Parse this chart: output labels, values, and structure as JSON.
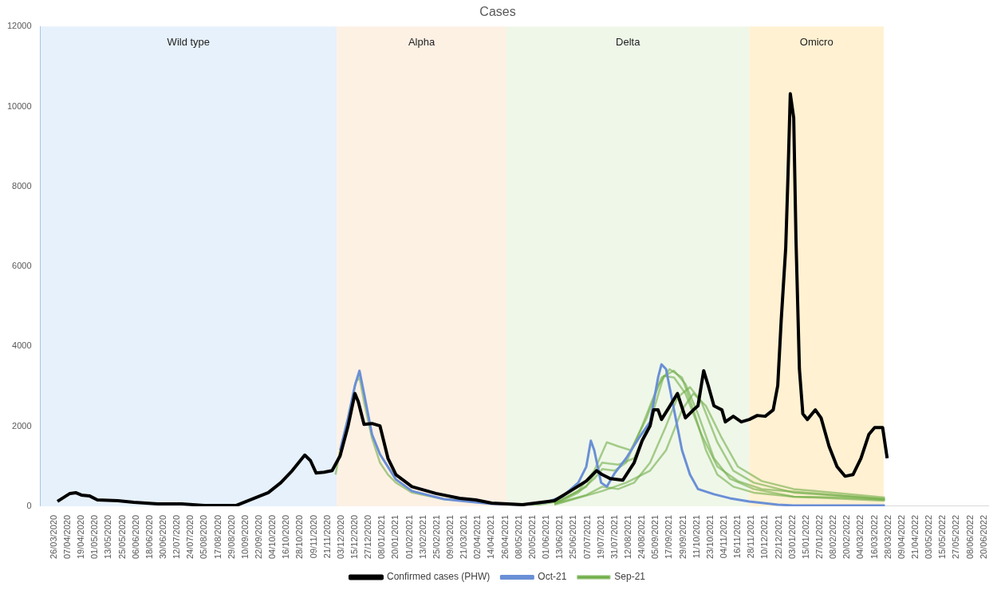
{
  "chart_data": {
    "type": "line",
    "title": "Cases",
    "legend": "bottom",
    "grid": false,
    "marker": "none",
    "line_style": "solid",
    "xlim": [
      "2020-03-14",
      "2022-06-24"
    ],
    "ylim": [
      0,
      12000
    ],
    "yticks": [
      0,
      2000,
      4000,
      6000,
      8000,
      10000,
      12000
    ],
    "xticks": [
      {
        "value": "2020-03-26",
        "label": "26/03/2020"
      },
      {
        "value": "2020-04-07",
        "label": "07/04/2020"
      },
      {
        "value": "2020-04-19",
        "label": "19/04/2020"
      },
      {
        "value": "2020-05-01",
        "label": "01/05/2020"
      },
      {
        "value": "2020-05-13",
        "label": "13/05/2020"
      },
      {
        "value": "2020-05-25",
        "label": "25/05/2020"
      },
      {
        "value": "2020-06-06",
        "label": "06/06/2020"
      },
      {
        "value": "2020-06-18",
        "label": "18/06/2020"
      },
      {
        "value": "2020-06-30",
        "label": "30/06/2020"
      },
      {
        "value": "2020-07-12",
        "label": "12/07/2020"
      },
      {
        "value": "2020-07-24",
        "label": "24/07/2020"
      },
      {
        "value": "2020-08-05",
        "label": "05/08/2020"
      },
      {
        "value": "2020-08-17",
        "label": "17/08/2020"
      },
      {
        "value": "2020-08-29",
        "label": "29/08/2020"
      },
      {
        "value": "2020-09-10",
        "label": "10/09/2020"
      },
      {
        "value": "2020-09-22",
        "label": "22/09/2020"
      },
      {
        "value": "2020-10-04",
        "label": "04/10/2020"
      },
      {
        "value": "2020-10-16",
        "label": "16/10/2020"
      },
      {
        "value": "2020-10-28",
        "label": "28/10/2020"
      },
      {
        "value": "2020-11-09",
        "label": "09/11/2020"
      },
      {
        "value": "2020-11-21",
        "label": "21/11/2020"
      },
      {
        "value": "2020-12-03",
        "label": "03/12/2020"
      },
      {
        "value": "2020-12-15",
        "label": "15/12/2020"
      },
      {
        "value": "2020-12-27",
        "label": "27/12/2020"
      },
      {
        "value": "2021-01-08",
        "label": "08/01/2021"
      },
      {
        "value": "2021-01-20",
        "label": "20/01/2021"
      },
      {
        "value": "2021-02-01",
        "label": "01/02/2021"
      },
      {
        "value": "2021-02-13",
        "label": "13/02/2021"
      },
      {
        "value": "2021-02-25",
        "label": "25/02/2021"
      },
      {
        "value": "2021-03-09",
        "label": "09/03/2021"
      },
      {
        "value": "2021-03-21",
        "label": "21/03/2021"
      },
      {
        "value": "2021-04-02",
        "label": "02/04/2021"
      },
      {
        "value": "2021-04-14",
        "label": "14/04/2021"
      },
      {
        "value": "2021-04-26",
        "label": "26/04/2021"
      },
      {
        "value": "2021-05-08",
        "label": "08/05/2021"
      },
      {
        "value": "2021-05-20",
        "label": "20/05/2021"
      },
      {
        "value": "2021-06-01",
        "label": "01/06/2021"
      },
      {
        "value": "2021-06-13",
        "label": "13/06/2021"
      },
      {
        "value": "2021-06-25",
        "label": "25/06/2021"
      },
      {
        "value": "2021-07-07",
        "label": "07/07/2021"
      },
      {
        "value": "2021-07-19",
        "label": "19/07/2021"
      },
      {
        "value": "2021-07-31",
        "label": "31/07/2021"
      },
      {
        "value": "2021-08-12",
        "label": "12/08/2021"
      },
      {
        "value": "2021-08-24",
        "label": "24/08/2021"
      },
      {
        "value": "2021-09-05",
        "label": "05/09/2021"
      },
      {
        "value": "2021-09-17",
        "label": "17/09/2021"
      },
      {
        "value": "2021-09-29",
        "label": "29/09/2021"
      },
      {
        "value": "2021-10-11",
        "label": "11/10/2021"
      },
      {
        "value": "2021-10-23",
        "label": "23/10/2021"
      },
      {
        "value": "2021-11-04",
        "label": "04/11/2021"
      },
      {
        "value": "2021-11-16",
        "label": "16/11/2021"
      },
      {
        "value": "2021-11-28",
        "label": "28/11/2021"
      },
      {
        "value": "2021-12-10",
        "label": "10/12/2021"
      },
      {
        "value": "2021-12-22",
        "label": "22/12/2021"
      },
      {
        "value": "2022-01-03",
        "label": "03/01/2022"
      },
      {
        "value": "2022-01-15",
        "label": "15/01/2022"
      },
      {
        "value": "2022-01-27",
        "label": "27/01/2022"
      },
      {
        "value": "2022-02-08",
        "label": "08/02/2022"
      },
      {
        "value": "2022-02-20",
        "label": "20/02/2022"
      },
      {
        "value": "2022-03-04",
        "label": "04/03/2022"
      },
      {
        "value": "2022-03-16",
        "label": "16/03/2022"
      },
      {
        "value": "2022-03-28",
        "label": "28/03/2022"
      },
      {
        "value": "2022-04-09",
        "label": "09/04/2022"
      },
      {
        "value": "2022-04-21",
        "label": "21/04/2022"
      },
      {
        "value": "2022-05-03",
        "label": "03/05/2022"
      },
      {
        "value": "2022-05-15",
        "label": "15/05/2022"
      },
      {
        "value": "2022-05-27",
        "label": "27/05/2022"
      },
      {
        "value": "2022-06-08",
        "label": "08/06/2022"
      },
      {
        "value": "2022-06-20",
        "label": "20/06/2022"
      }
    ],
    "bands": [
      {
        "axis": "x",
        "from": "2020-03-14",
        "to": "2020-11-29",
        "label": "Wild type",
        "color": "#e6f1fb"
      },
      {
        "axis": "x",
        "from": "2020-11-29",
        "to": "2021-04-27",
        "label": "Alpha",
        "color": "#fdf1e4"
      },
      {
        "axis": "x",
        "from": "2021-04-27",
        "to": "2021-11-26",
        "label": "Delta",
        "color": "#eff7e9"
      },
      {
        "axis": "x",
        "from": "2021-11-26",
        "to": "2022-03-24",
        "label": "Omicro",
        "color": "#fff1d2"
      }
    ],
    "series": [
      {
        "name": "Confirmed cases (PHW)",
        "color": "#000000",
        "x": [
          "2020-03-29",
          "2020-04-09",
          "2020-04-14",
          "2020-04-19",
          "2020-04-26",
          "2020-05-03",
          "2020-05-21",
          "2020-06-04",
          "2020-06-25",
          "2020-07-16",
          "2020-08-05",
          "2020-09-02",
          "2020-09-16",
          "2020-09-30",
          "2020-10-11",
          "2020-10-21",
          "2020-11-01",
          "2020-11-06",
          "2020-11-11",
          "2020-11-18",
          "2020-11-25",
          "2020-12-02",
          "2020-12-09",
          "2020-12-15",
          "2020-12-18",
          "2020-12-23",
          "2020-12-30",
          "2021-01-06",
          "2021-01-13",
          "2021-01-20",
          "2021-02-03",
          "2021-02-24",
          "2021-03-17",
          "2021-03-31",
          "2021-04-14",
          "2021-05-11",
          "2021-06-08",
          "2021-06-22",
          "2021-07-06",
          "2021-07-15",
          "2021-07-20",
          "2021-07-27",
          "2021-08-07",
          "2021-08-17",
          "2021-08-24",
          "2021-08-31",
          "2021-09-03",
          "2021-09-07",
          "2021-09-10",
          "2021-09-17",
          "2021-09-24",
          "2021-10-01",
          "2021-10-08",
          "2021-10-12",
          "2021-10-17",
          "2021-10-21",
          "2021-10-26",
          "2021-11-02",
          "2021-11-05",
          "2021-11-12",
          "2021-11-19",
          "2021-11-26",
          "2021-12-03",
          "2021-12-10",
          "2021-12-17",
          "2021-12-21",
          "2021-12-24",
          "2021-12-28",
          "2021-12-30",
          "2022-01-01",
          "2022-01-04",
          "2022-01-06",
          "2022-01-09",
          "2022-01-12",
          "2022-01-16",
          "2022-01-23",
          "2022-01-28",
          "2022-02-04",
          "2022-02-11",
          "2022-02-18",
          "2022-02-25",
          "2022-03-04",
          "2022-03-11",
          "2022-03-16",
          "2022-03-23",
          "2022-03-27"
        ],
        "values": [
          120,
          320,
          340,
          280,
          260,
          160,
          140,
          100,
          60,
          60,
          20,
          20,
          180,
          340,
          590,
          890,
          1280,
          1140,
          830,
          850,
          890,
          1260,
          2010,
          2820,
          2610,
          2050,
          2070,
          2010,
          1200,
          790,
          490,
          320,
          200,
          160,
          80,
          40,
          140,
          380,
          630,
          890,
          790,
          690,
          650,
          1090,
          1640,
          2010,
          2410,
          2410,
          2170,
          2490,
          2820,
          2210,
          2410,
          2510,
          3390,
          3020,
          2510,
          2410,
          2110,
          2250,
          2110,
          2170,
          2270,
          2250,
          2410,
          3020,
          4640,
          6470,
          8290,
          10320,
          9710,
          6670,
          3430,
          2310,
          2170,
          2410,
          2210,
          1500,
          990,
          750,
          790,
          1200,
          1800,
          1970,
          1970,
          1200
        ]
      },
      {
        "name": "Oct-21",
        "color": "#6a8fd6",
        "x": [
          "2020-12-02",
          "2020-12-09",
          "2020-12-15",
          "2020-12-19",
          "2020-12-23",
          "2020-12-30",
          "2021-01-06",
          "2021-01-20",
          "2021-02-03",
          "2021-03-03",
          "2021-04-14",
          "2021-05-11",
          "2021-06-01",
          "2021-06-15",
          "2021-06-29",
          "2021-07-06",
          "2021-07-10",
          "2021-07-13",
          "2021-07-19",
          "2021-07-24",
          "2021-07-31",
          "2021-08-10",
          "2021-08-21",
          "2021-08-31",
          "2021-09-07",
          "2021-09-10",
          "2021-09-14",
          "2021-09-21",
          "2021-09-28",
          "2021-10-05",
          "2021-10-12",
          "2021-10-26",
          "2021-11-09",
          "2021-11-26",
          "2021-12-21",
          "2022-01-04",
          "2022-03-25"
        ],
        "values": [
          1400,
          2210,
          3020,
          3390,
          2820,
          1800,
          1300,
          670,
          380,
          180,
          60,
          40,
          100,
          240,
          590,
          990,
          1640,
          1400,
          590,
          490,
          830,
          1200,
          1700,
          2110,
          3220,
          3550,
          3430,
          2410,
          1400,
          790,
          430,
          300,
          200,
          120,
          40,
          20,
          20
        ]
      },
      {
        "name": "Sep-21",
        "color": "#70ad47",
        "x": [
          "2020-11-28",
          "2020-12-02",
          "2020-12-09",
          "2020-12-16",
          "2020-12-19",
          "2020-12-23",
          "2020-12-30",
          "2021-01-06",
          "2021-01-13",
          "2021-01-20",
          "2021-02-03",
          "2021-03-03",
          "2021-04-14",
          "2021-05-25",
          "2021-06-15",
          "2021-06-29",
          "2021-07-13",
          "2021-07-20",
          "2021-07-31",
          "2021-08-10",
          "2021-08-24",
          "2021-09-07",
          "2021-09-17",
          "2021-09-28",
          "2021-10-08",
          "2021-10-19",
          "2021-10-29",
          "2021-11-12",
          "2021-11-30",
          "2022-01-04",
          "2022-02-14",
          "2022-03-25"
        ],
        "values": [
          790,
          1400,
          2210,
          3120,
          3220,
          2610,
          1700,
          1090,
          790,
          590,
          340,
          180,
          80,
          40,
          140,
          340,
          690,
          930,
          890,
          1090,
          2010,
          3020,
          3430,
          3220,
          2410,
          1400,
          790,
          490,
          340,
          240,
          220,
          160
        ]
      },
      {
        "color": "#70ad47",
        "x": [
          "2021-06-08",
          "2021-06-29",
          "2021-07-13",
          "2021-07-24",
          "2021-08-03",
          "2021-08-14",
          "2021-08-28",
          "2021-09-10",
          "2021-09-21",
          "2021-10-01",
          "2021-10-12",
          "2021-10-26",
          "2021-11-09",
          "2021-11-30",
          "2022-01-04",
          "2022-03-25"
        ],
        "values": [
          80,
          380,
          890,
          1600,
          1500,
          1400,
          2210,
          3220,
          3390,
          3060,
          2310,
          1200,
          690,
          430,
          240,
          140
        ]
      },
      {
        "color": "#70ad47",
        "x": [
          "2021-06-08",
          "2021-07-06",
          "2021-07-20",
          "2021-08-03",
          "2021-08-17",
          "2021-08-31",
          "2021-09-14",
          "2021-09-24",
          "2021-10-05",
          "2021-10-15",
          "2021-10-29",
          "2021-11-12",
          "2021-11-30",
          "2022-01-04",
          "2022-03-25"
        ],
        "values": [
          60,
          280,
          490,
          430,
          590,
          1090,
          2010,
          2720,
          2980,
          2610,
          1600,
          890,
          590,
          340,
          180
        ]
      },
      {
        "color": "#70ad47",
        "x": [
          "2021-06-08",
          "2021-07-06",
          "2021-07-20",
          "2021-08-03",
          "2021-08-17",
          "2021-08-31",
          "2021-09-12",
          "2021-09-21",
          "2021-10-01",
          "2021-10-15",
          "2021-10-29",
          "2021-11-16",
          "2021-12-07",
          "2022-03-25"
        ],
        "values": [
          60,
          490,
          1090,
          1040,
          1200,
          2110,
          3260,
          3220,
          2820,
          1800,
          990,
          630,
          430,
          180
        ]
      },
      {
        "color": "#70ad47",
        "x": [
          "2021-06-08",
          "2021-07-20",
          "2021-08-10",
          "2021-08-31",
          "2021-09-14",
          "2021-09-28",
          "2021-10-08",
          "2021-10-19",
          "2021-11-02",
          "2021-11-16",
          "2021-12-07",
          "2022-01-04",
          "2022-03-25"
        ],
        "values": [
          40,
          380,
          590,
          890,
          1400,
          2410,
          2820,
          2510,
          1700,
          990,
          630,
          430,
          220
        ]
      }
    ]
  }
}
